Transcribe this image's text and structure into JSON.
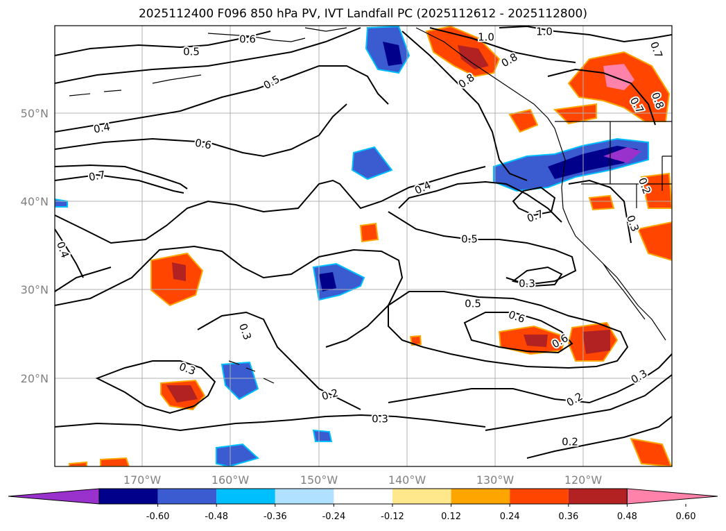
{
  "title": "2025112400 F096 850 hPa PV, IVT Landfall PC (2025112612 - 2025112800)",
  "map": {
    "lon_ticks": [
      "170°W",
      "160°W",
      "150°W",
      "140°W",
      "130°W",
      "120°W"
    ],
    "lat_ticks": [
      "50°N",
      "40°N",
      "30°N",
      "20°N"
    ],
    "gridlines": true,
    "contour_color": "#000000",
    "contour_labels": [
      "0.5",
      "0.6",
      "1.0",
      "1.0",
      "0.8",
      "0.8",
      "0.7",
      "0.8",
      "0.7",
      "0.5",
      "0.4",
      "0.6",
      "0.7",
      "0.4",
      "0.4",
      "0.7",
      "0.5",
      "0.3",
      "0.3",
      "0.5",
      "0.6",
      "0.6",
      "0.3",
      "0.2",
      "0.3",
      "0.2",
      "0.3",
      "0.2",
      "0.2",
      "0.3"
    ]
  },
  "colorbar": {
    "labels": [
      "-0.60",
      "-0.48",
      "-0.36",
      "-0.24",
      "-0.12",
      "0.12",
      "0.24",
      "0.36",
      "0.48",
      "0.60"
    ],
    "colors": [
      "#9932cc",
      "#00008b",
      "#3b5bd0",
      "#00bfff",
      "#b0e2ff",
      "#ffffff",
      "#ffe88c",
      "#ffa500",
      "#ff4500",
      "#b22222",
      "#ff82ab"
    ],
    "extend": "both"
  }
}
